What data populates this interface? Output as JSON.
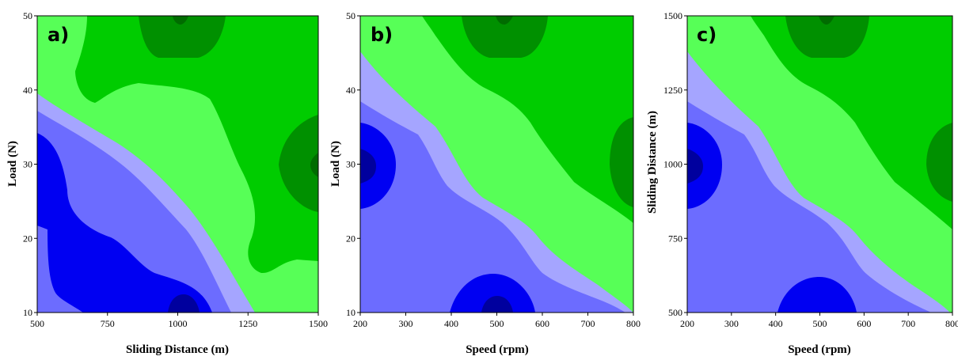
{
  "chart_data": [
    {
      "type": "contour",
      "panel_label": "a)",
      "xlabel": "Sliding Distance (m)",
      "ylabel": "Load (N)",
      "xlim": [
        500,
        1500
      ],
      "ylim": [
        10,
        50
      ],
      "xticks": [
        "500",
        "750",
        "1000",
        "1250",
        "1500"
      ],
      "yticks": [
        "10",
        "20",
        "30",
        "40",
        "50"
      ]
    },
    {
      "type": "contour",
      "panel_label": "b)",
      "xlabel": "Speed (rpm)",
      "ylabel": "Load (N)",
      "xlim": [
        200,
        800
      ],
      "ylim": [
        10,
        50
      ],
      "xticks": [
        "200",
        "300",
        "400",
        "500",
        "600",
        "700",
        "800"
      ],
      "yticks": [
        "10",
        "20",
        "30",
        "40",
        "50"
      ]
    },
    {
      "type": "contour",
      "panel_label": "c)",
      "xlabel": "Speed (rpm)",
      "ylabel": "Sliding Distance (m)",
      "xlim": [
        200,
        800
      ],
      "ylim": [
        500,
        1500
      ],
      "xticks": [
        "200",
        "300",
        "400",
        "500",
        "600",
        "700",
        "800"
      ],
      "yticks": [
        "500",
        "750",
        "1000",
        "1250",
        "1500"
      ]
    }
  ],
  "colors": {
    "level_1": "#00009e",
    "level_2": "#0000f2",
    "level_3": "#6c6cff",
    "level_4": "#a5a5ff",
    "level_5": "#57ff57",
    "level_6": "#00cc00",
    "level_7": "#009000",
    "level_8": "#006c00"
  }
}
